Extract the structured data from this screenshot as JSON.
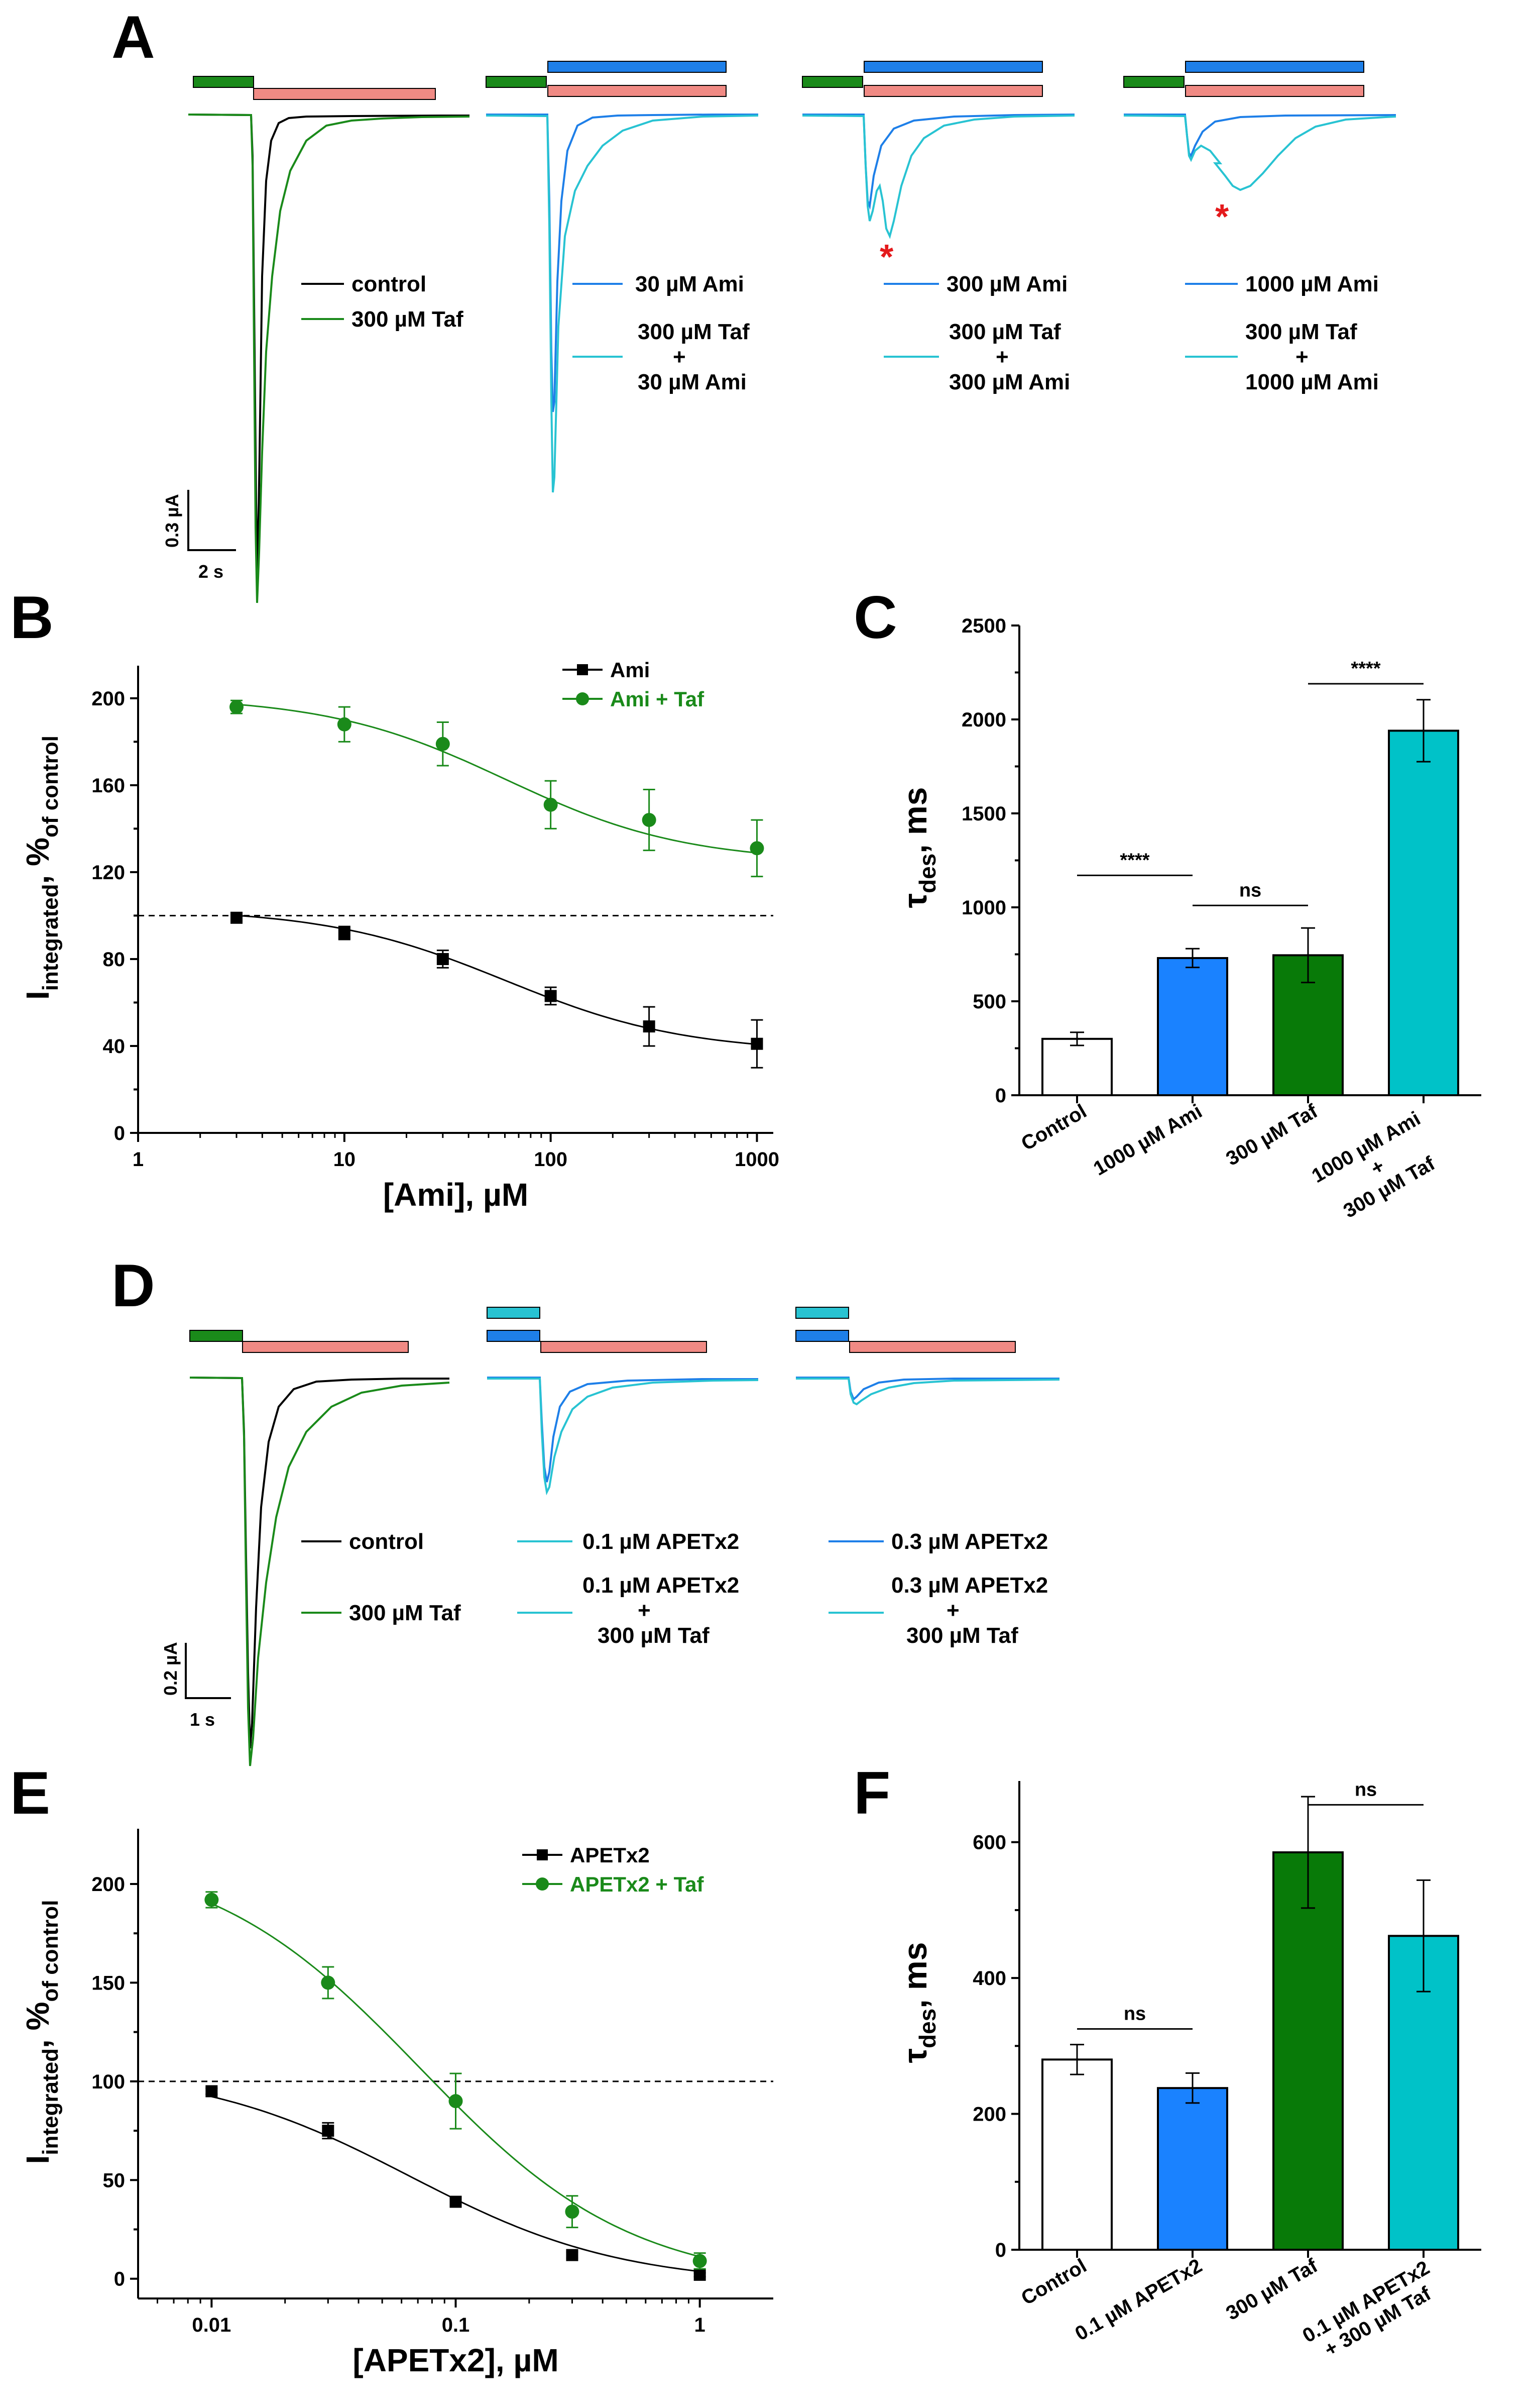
{
  "panels": {
    "A": {
      "letter": "A",
      "legend": {
        "control": "control",
        "taf": "300 µM Taf",
        "ami30": "30 µM Ami",
        "ami300": "300 µM Ami",
        "ami1000": "1000 µM Ami",
        "combo30_l1": "300 µM Taf",
        "combo30_l2": "+",
        "combo30_l3": "30 µM Ami",
        "combo300_l1": "300 µM Taf",
        "combo300_l2": "+",
        "combo300_l3": "300 µM Ami",
        "combo1000_l1": "300 µM Taf",
        "combo1000_l2": "+",
        "combo1000_l3": "1000 µM Ami"
      },
      "scalebar": {
        "y": "0.3 µA",
        "x": "2 s"
      },
      "asterisk": "*"
    },
    "D": {
      "letter": "D",
      "legend": {
        "control": "control",
        "taf": "300 µM Taf",
        "apet01": "0.1 µM APETx2",
        "apet03": "0.3 µM APETx2",
        "combo01_l1": "0.1 µM APETx2",
        "combo01_l2": "+",
        "combo01_l3": "300 µM Taf",
        "combo03_l1": "0.3 µM APETx2",
        "combo03_l2": "+",
        "combo03_l3": "300 µM Taf"
      },
      "scalebar": {
        "y": "0.2 µA",
        "x": "1 s"
      }
    },
    "B": {
      "letter": "B"
    },
    "C": {
      "letter": "C"
    },
    "E": {
      "letter": "E"
    },
    "F": {
      "letter": "F"
    }
  },
  "colors": {
    "black": "#000000",
    "green": "#1a8a1a",
    "blue": "#1e7fe8",
    "cyan": "#28c3d2",
    "salmon": "#f08a84",
    "red": "#e41a1c",
    "bar_blue": "#1a82ff",
    "bar_green": "#087a08",
    "bar_cyan": "#00c2c8"
  },
  "chart_data": [
    {
      "id": "B",
      "type": "scatter",
      "xscale": "log",
      "xlabel": "[Ami], µM",
      "ylabel": "I",
      "ylabel_sub1": "integrated",
      "ylabel_mid": ", %",
      "ylabel_sub2": "of control",
      "xlim": [
        1,
        1200
      ],
      "ylim": [
        0,
        215
      ],
      "xticks": [
        1,
        10,
        100,
        1000
      ],
      "xtick_labels": [
        "1",
        "10",
        "100",
        "1000"
      ],
      "yticks": [
        0,
        40,
        80,
        120,
        160,
        200
      ],
      "ytick_labels": [
        "0",
        "40",
        "80",
        "120",
        "160",
        "200"
      ],
      "reference_line": 100,
      "series": [
        {
          "name": "Ami",
          "color": "#000000",
          "marker": "square",
          "x": [
            3,
            10,
            30,
            100,
            300,
            1000
          ],
          "y": [
            99,
            92,
            80,
            63,
            49,
            41
          ],
          "err": [
            1.5,
            3,
            4,
            4,
            9,
            11
          ]
        },
        {
          "name": "Ami + Taf",
          "color": "#1a8a1a",
          "marker": "circle",
          "x": [
            3,
            10,
            30,
            100,
            300,
            1000
          ],
          "y": [
            196,
            188,
            179,
            151,
            144,
            131
          ],
          "err": [
            3,
            8,
            10,
            11,
            14,
            13
          ]
        }
      ]
    },
    {
      "id": "C",
      "type": "bar",
      "ylabel": "τ",
      "ylabel_sub": "des",
      "ylabel_tail": ", ms",
      "ylim": [
        0,
        2500
      ],
      "yticks": [
        0,
        500,
        1000,
        1500,
        2000,
        2500
      ],
      "ytick_labels": [
        "0",
        "500",
        "1000",
        "1500",
        "2000",
        "2500"
      ],
      "categories": [
        "Control",
        "1000 µM Ami",
        "300 µM Taf",
        "1000 µM Ami + 300 µM Taf"
      ],
      "category_lines": [
        [
          "Control"
        ],
        [
          "1000 µM Ami"
        ],
        [
          "300 µM Taf"
        ],
        [
          "1000 µM Ami",
          "+",
          "300 µM Taf"
        ]
      ],
      "values": [
        300,
        730,
        745,
        1940
      ],
      "errors": [
        35,
        50,
        145,
        165
      ],
      "colors": [
        "#ffffff",
        "#1a82ff",
        "#087a08",
        "#00c2c8"
      ],
      "significance": [
        {
          "from": 0,
          "to": 1,
          "label": "****",
          "y": 1170
        },
        {
          "from": 1,
          "to": 2,
          "label": "ns",
          "y": 1010
        },
        {
          "from": 2,
          "to": 3,
          "label": "****",
          "y": 2190
        }
      ]
    },
    {
      "id": "E",
      "type": "scatter",
      "xscale": "log",
      "xlabel": "[APETx2], µM",
      "ylabel": "I",
      "ylabel_sub1": "integrated",
      "ylabel_mid": ", %",
      "ylabel_sub2": "of control",
      "xlim": [
        0.005,
        2
      ],
      "ylim": [
        -10,
        228
      ],
      "xticks": [
        0.01,
        0.1,
        1
      ],
      "xtick_labels": [
        "0.01",
        "0.1",
        "1"
      ],
      "yticks": [
        0,
        50,
        100,
        150,
        200
      ],
      "ytick_labels": [
        "0",
        "50",
        "100",
        "150",
        "200"
      ],
      "reference_line": 100,
      "series": [
        {
          "name": "APETx2",
          "color": "#000000",
          "marker": "square",
          "x": [
            0.01,
            0.03,
            0.1,
            0.3,
            1
          ],
          "y": [
            95,
            75,
            39,
            12,
            2
          ],
          "err": [
            1.5,
            4,
            1.5,
            1.5,
            1
          ]
        },
        {
          "name": "APETx2 + Taf",
          "color": "#1a8a1a",
          "marker": "circle",
          "x": [
            0.01,
            0.03,
            0.1,
            0.3,
            1
          ],
          "y": [
            192,
            150,
            90,
            34,
            9
          ],
          "err": [
            4,
            8,
            14,
            8,
            4
          ]
        }
      ]
    },
    {
      "id": "F",
      "type": "bar",
      "ylabel": "τ",
      "ylabel_sub": "des",
      "ylabel_tail": ", ms",
      "ylim": [
        0,
        690
      ],
      "yticks": [
        0,
        200,
        400,
        600
      ],
      "ytick_labels": [
        "0",
        "200",
        "400",
        "600"
      ],
      "categories": [
        "Control",
        "0.1 µM APETx2",
        "300 µM Taf",
        "0.1 µM APETx2 + 300 µM Taf"
      ],
      "category_lines": [
        [
          "Control"
        ],
        [
          "0.1 µM APETx2"
        ],
        [
          "300 µM Taf"
        ],
        [
          "0.1 µM APETx2",
          "+ 300 µM Taf"
        ]
      ],
      "values": [
        280,
        238,
        585,
        462
      ],
      "errors": [
        22,
        22,
        82,
        82
      ],
      "colors": [
        "#ffffff",
        "#1a82ff",
        "#087a08",
        "#00c2c8"
      ],
      "significance": [
        {
          "from": 0,
          "to": 1,
          "label": "ns",
          "y": 325
        },
        {
          "from": 2,
          "to": 3,
          "label": "ns",
          "y": 655
        }
      ]
    }
  ]
}
